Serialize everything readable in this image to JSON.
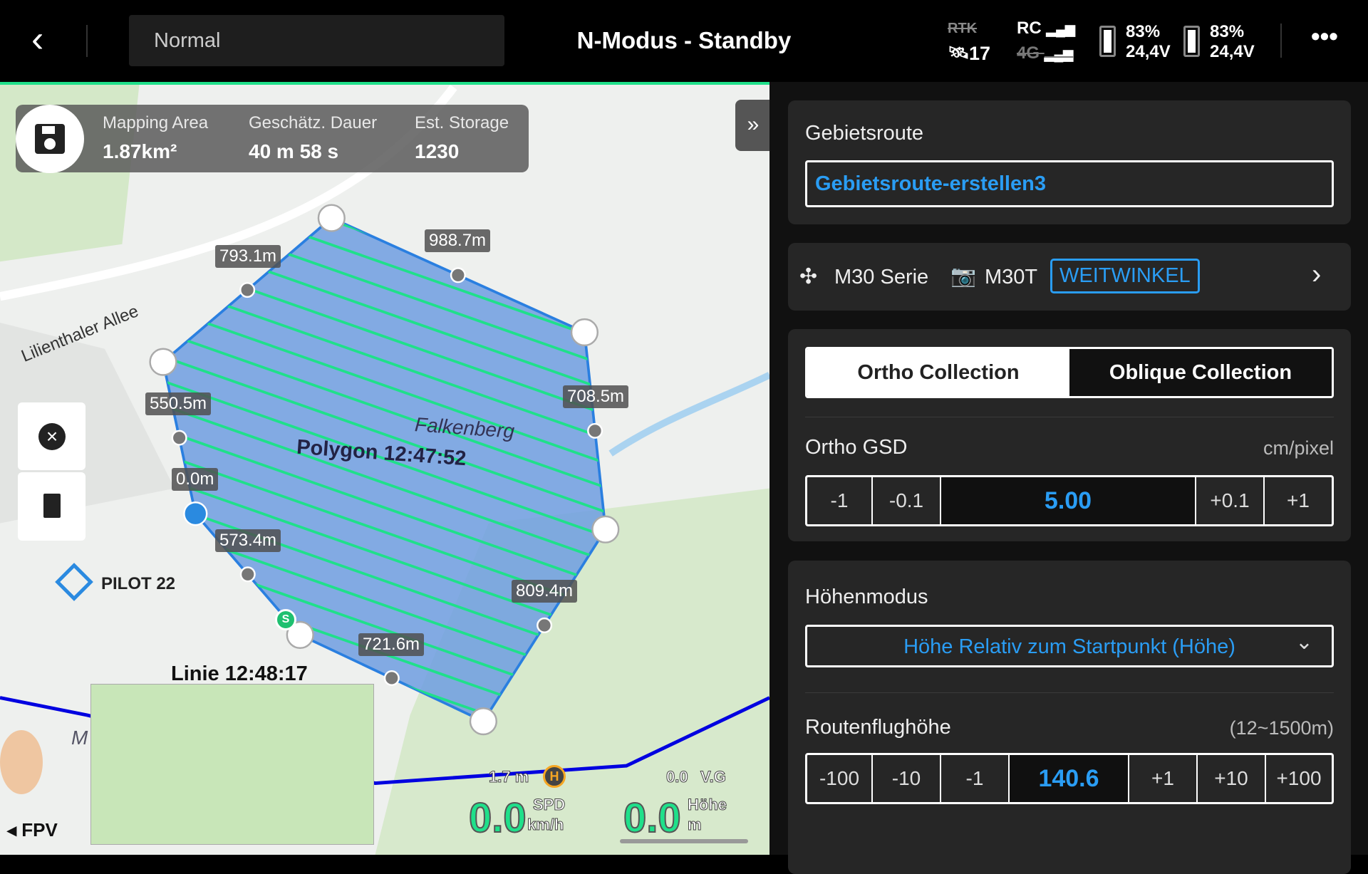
{
  "topbar": {
    "mode": "Normal",
    "title": "N-Modus - Standby",
    "rtk": "RTK",
    "satellites": "17",
    "rc": "RC",
    "net": "4G",
    "battery1": {
      "percent": "83%",
      "voltage": "24,4V"
    },
    "battery2": {
      "percent": "83%",
      "voltage": "24,4V"
    }
  },
  "stats": {
    "area_label": "Mapping Area",
    "area_value": "1.87km²",
    "duration_label": "Geschätz. Dauer",
    "duration_value": "40 m 58 s",
    "storage_label": "Est. Storage",
    "storage_value": "1230"
  },
  "map": {
    "street": "Lilienthaler Allee",
    "place": "Falkenberg",
    "polygon_label": "Polygon 12:47:52",
    "line_label": "Linie 12:48:17",
    "pilot_label": "PILOT 22",
    "fpv": "FPV",
    "m": "M",
    "edges": [
      "793.1m",
      "988.7m",
      "708.5m",
      "809.4m",
      "721.6m",
      "573.4m",
      "0.0m",
      "550.5m"
    ],
    "start_marker": "S",
    "home_distance": "1.7 m",
    "home_icon": "H",
    "vg_value": "0.0",
    "vg_label": "V.G",
    "spd_value": "0.0",
    "spd_label": "SPD",
    "spd_unit": "km/h",
    "alt_value": "0.0",
    "alt_label": "Höhe",
    "alt_unit": "m",
    "polygon_color": "#6f9ee0",
    "hatch_color": "#1fe08a"
  },
  "panel": {
    "route_label": "Gebietsroute",
    "route_name": "Gebietsroute-erstellen3",
    "drone": "M30 Serie",
    "camera": "M30T",
    "lens": "WEITWINKEL",
    "tabs": [
      "Ortho Collection",
      "Oblique Collection"
    ],
    "gsd_label": "Ortho GSD",
    "gsd_unit": "cm/pixel",
    "gsd_steps": [
      "-1",
      "-0.1",
      "5.00",
      "+0.1",
      "+1"
    ],
    "height_mode_label": "Höhenmodus",
    "height_mode": "Höhe Relativ zum Startpunkt (Höhe)",
    "alt_label": "Routenflughöhe",
    "alt_range": "(12~1500m)",
    "alt_steps": [
      "-100",
      "-10",
      "-1",
      "140.6",
      "+1",
      "+10",
      "+100"
    ]
  }
}
